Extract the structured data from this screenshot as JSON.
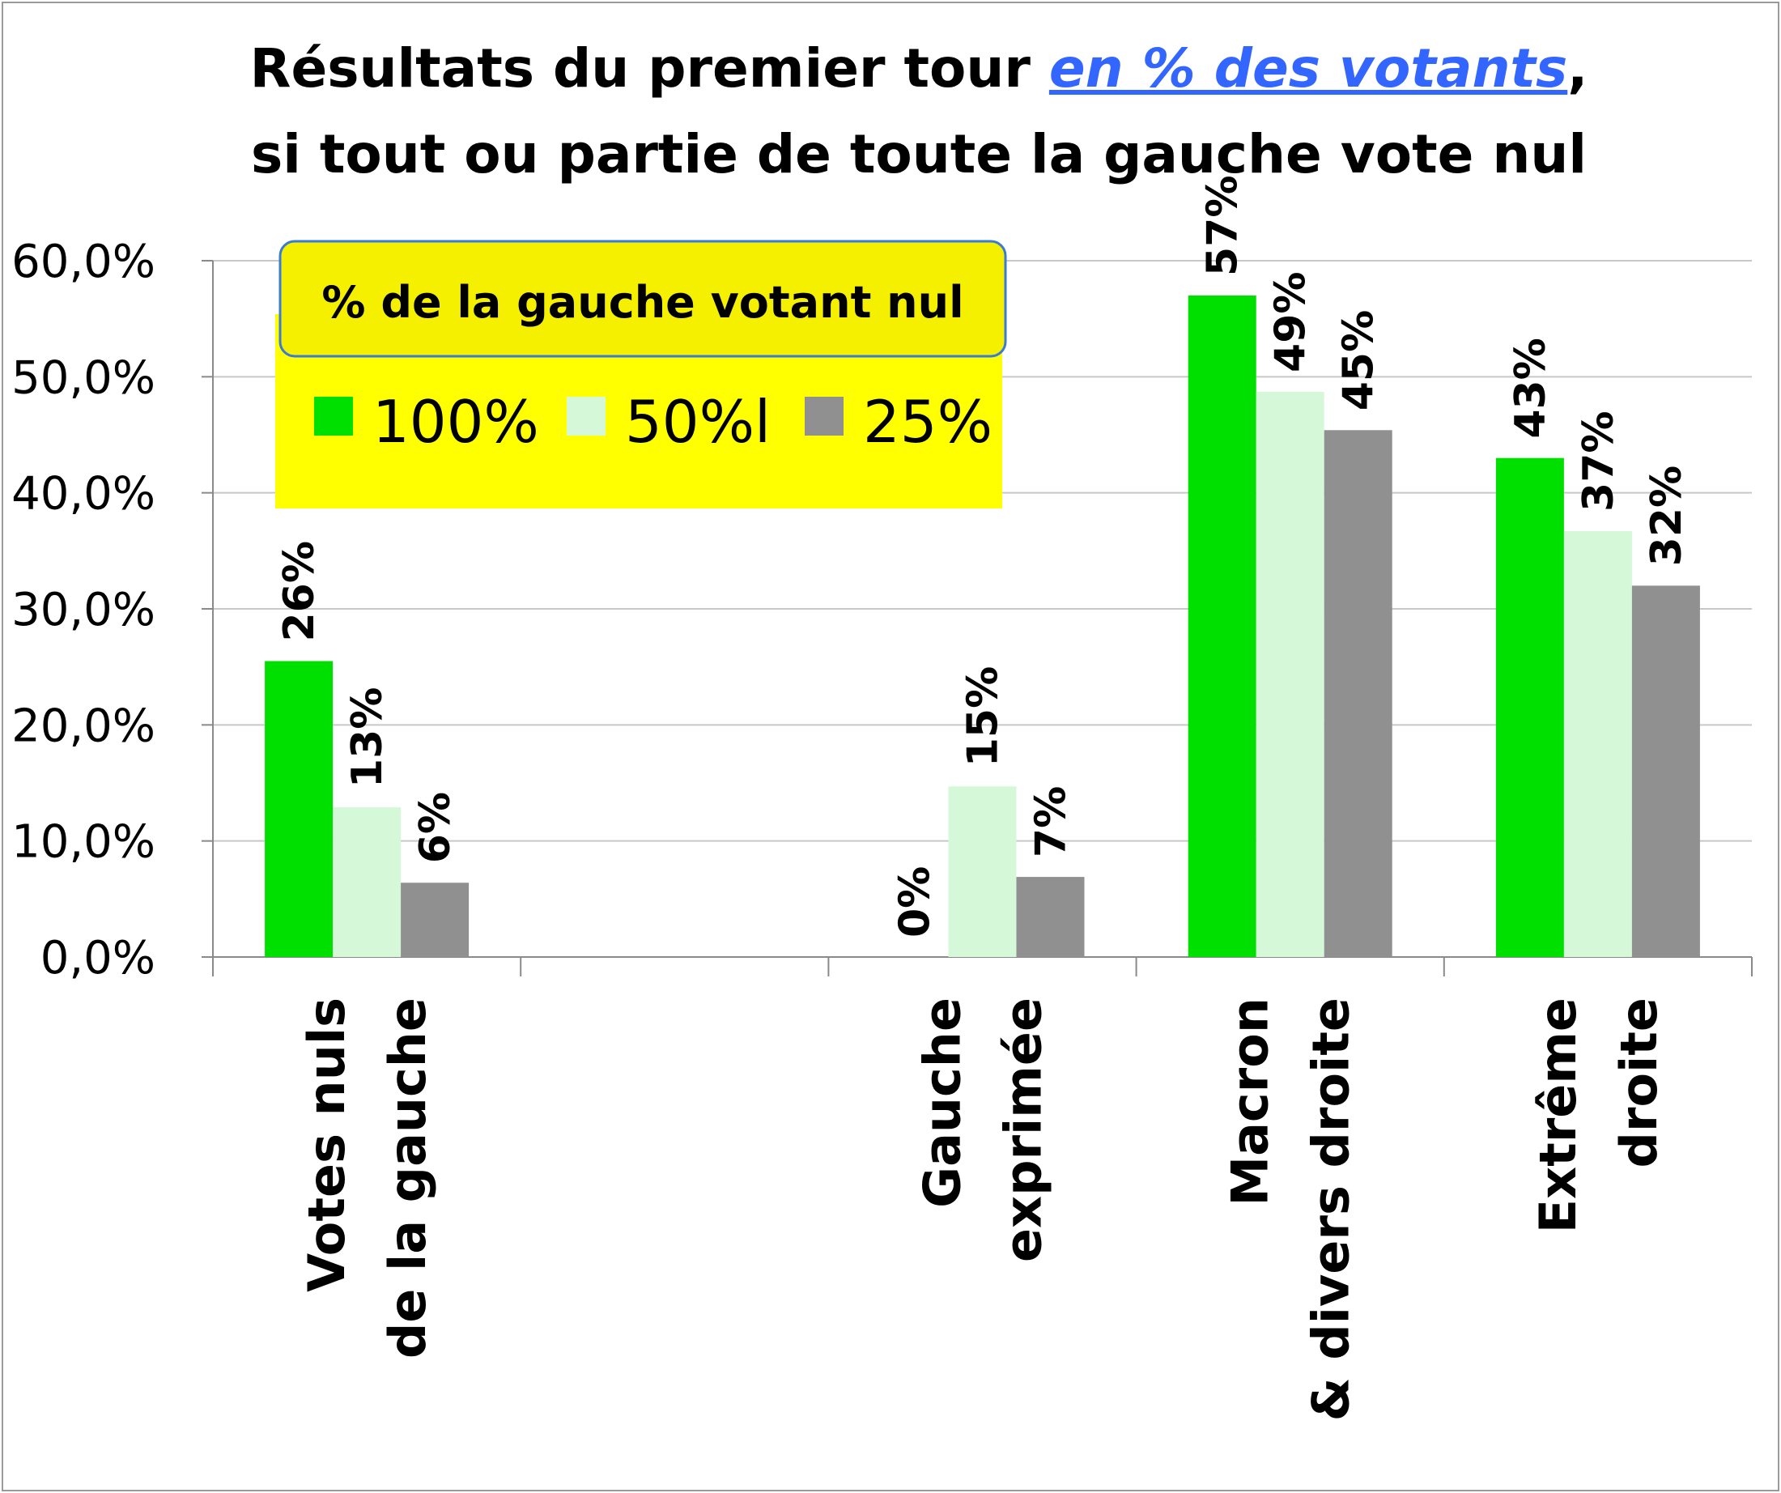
{
  "chart_data": {
    "type": "bar",
    "title_line1_before": "Résultats du premier tour ",
    "title_line1_highlight": "en % des votants",
    "title_line1_after": ",",
    "title_line2": "si tout ou partie de toute la gauche vote nul",
    "xlabel": "",
    "ylabel": "",
    "ylim": [
      0,
      60
    ],
    "yticks": [
      0,
      10,
      20,
      30,
      40,
      50,
      60
    ],
    "ytick_labels": [
      "0,0%",
      "10,0%",
      "20,0%",
      "30,0%",
      "40,0%",
      "50,0%",
      "60,0%"
    ],
    "grid": true,
    "legend_title": "% de la gauche votant nul",
    "legend_position": "top-left",
    "categories": [
      [
        "Votes nuls",
        "de la gauche"
      ],
      [],
      [
        "Gauche",
        "exprimée"
      ],
      [
        "Macron",
        "& divers droite"
      ],
      [
        "Extrême",
        "droite"
      ]
    ],
    "series": [
      {
        "name": "100%",
        "color": "#00e000",
        "values": [
          25.5,
          null,
          0,
          57,
          43
        ],
        "labels": [
          "26%",
          "",
          "0%",
          "57%",
          "43%"
        ]
      },
      {
        "name": "50%l",
        "color": "#d5f8d8",
        "values": [
          12.9,
          null,
          14.7,
          48.7,
          36.7
        ],
        "labels": [
          "13%",
          "",
          "15%",
          "49%",
          "37%"
        ]
      },
      {
        "name": "25%",
        "color": "#909090",
        "values": [
          6.4,
          null,
          6.9,
          45.4,
          32
        ],
        "labels": [
          "6%",
          "",
          "7%",
          "45%",
          "32%"
        ]
      }
    ]
  }
}
